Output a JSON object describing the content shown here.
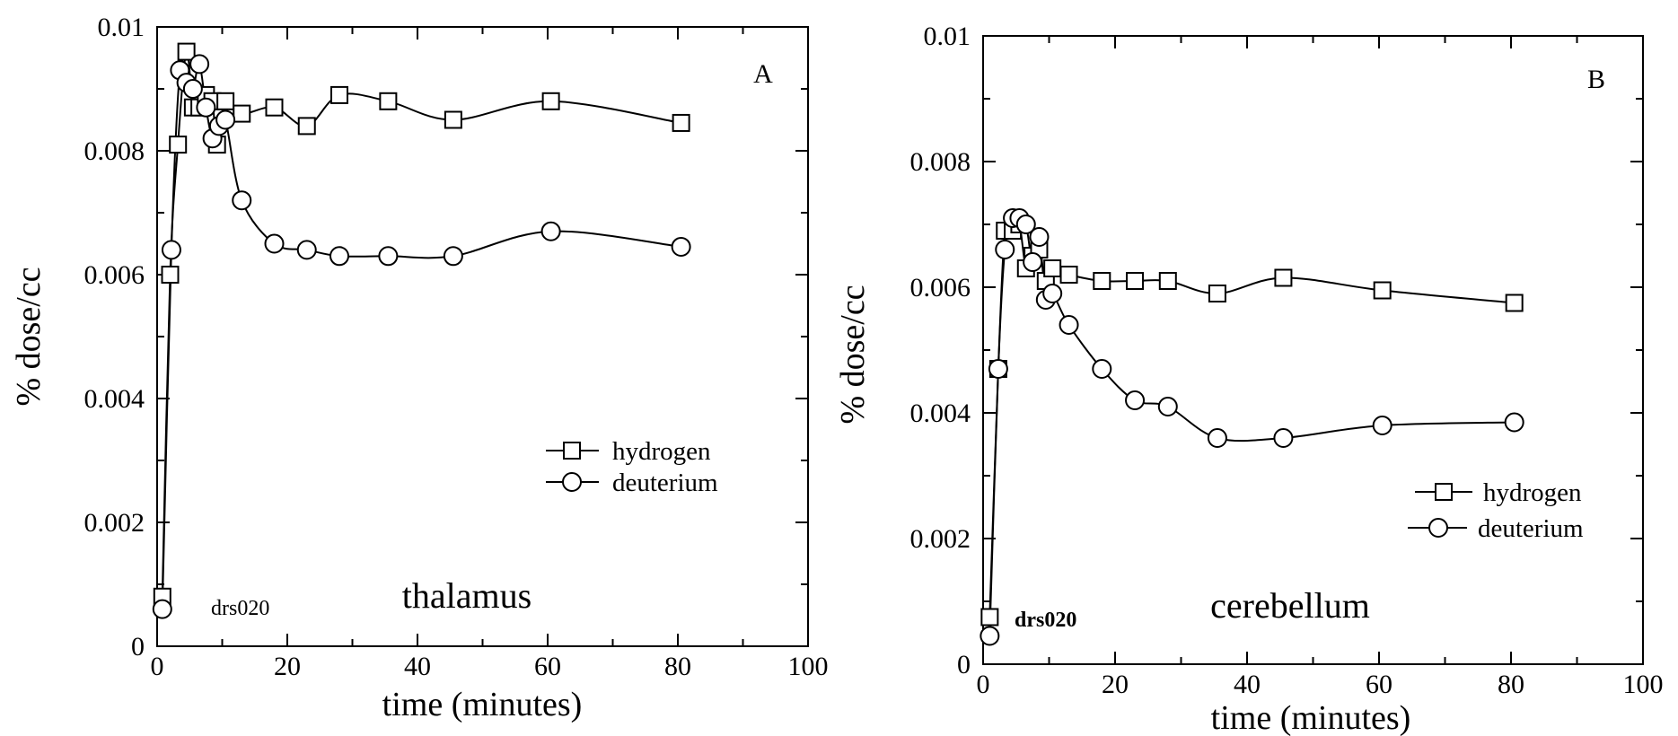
{
  "chart_data": [
    {
      "type": "line",
      "panel_letter": "A",
      "region_label": "thalamus",
      "run_label": "drs020",
      "xlabel": "time (minutes)",
      "ylabel": "% dose/cc",
      "xlim": [
        0,
        100
      ],
      "ylim": [
        0,
        0.01
      ],
      "xticks": [
        "0",
        "20",
        "40",
        "60",
        "80",
        "100"
      ],
      "yticks": [
        "0",
        "0.002",
        "0.004",
        "0.006",
        "0.008",
        "0.01"
      ],
      "legend_position": "center-right",
      "series": [
        {
          "name": "hydrogen",
          "marker": "square",
          "x": [
            0.8,
            2,
            3.2,
            4.5,
            5.5,
            6.5,
            7.5,
            8.5,
            9.2,
            10.5,
            13,
            18,
            23,
            28,
            35.5,
            45.5,
            60.5,
            80.5
          ],
          "y": [
            0.0008,
            0.006,
            0.0081,
            0.0096,
            0.0087,
            0.0087,
            0.0089,
            0.0088,
            0.0081,
            0.0088,
            0.0086,
            0.0087,
            0.0084,
            0.0089,
            0.0088,
            0.0085,
            0.0088,
            0.00845
          ]
        },
        {
          "name": "deuterium",
          "marker": "circle",
          "x": [
            0.8,
            2.2,
            3.5,
            4.5,
            5.5,
            6.5,
            7.5,
            8.5,
            9.5,
            10.5,
            13,
            18,
            23,
            28,
            35.5,
            45.5,
            60.5,
            80.5
          ],
          "y": [
            0.0006,
            0.0064,
            0.0093,
            0.0091,
            0.009,
            0.0094,
            0.0087,
            0.0082,
            0.0084,
            0.0085,
            0.0072,
            0.0065,
            0.0064,
            0.0063,
            0.0063,
            0.0063,
            0.0067,
            0.00645
          ]
        }
      ]
    },
    {
      "type": "line",
      "panel_letter": "B",
      "region_label": "cerebellum",
      "run_label": "drs020",
      "xlabel": "time (minutes)",
      "ylabel": "% dose/cc",
      "xlim": [
        0,
        100
      ],
      "ylim": [
        0,
        0.01
      ],
      "xticks": [
        "0",
        "20",
        "40",
        "60",
        "80",
        "100"
      ],
      "yticks": [
        "0",
        "0.002",
        "0.004",
        "0.006",
        "0.008",
        "0.01"
      ],
      "legend_position": "lower-right",
      "series": [
        {
          "name": "hydrogen",
          "marker": "square",
          "x": [
            1,
            2.3,
            3.3,
            4.5,
            5.5,
            6.5,
            7.5,
            8.5,
            9.5,
            10.5,
            13,
            18,
            23,
            28,
            35.5,
            45.5,
            60.5,
            80.5
          ],
          "y": [
            0.00075,
            0.0047,
            0.0069,
            0.0069,
            0.007,
            0.0063,
            0.0065,
            0.0066,
            0.0061,
            0.0063,
            0.0062,
            0.0061,
            0.0061,
            0.0061,
            0.0059,
            0.00615,
            0.00595,
            0.00575
          ]
        },
        {
          "name": "deuterium",
          "marker": "circle",
          "x": [
            1,
            2.3,
            3.3,
            4.5,
            5.5,
            6.5,
            7.5,
            8.5,
            9.5,
            10.5,
            13,
            18,
            23,
            28,
            35.5,
            45.5,
            60.5,
            80.5
          ],
          "y": [
            0.00045,
            0.0047,
            0.0066,
            0.0071,
            0.0071,
            0.007,
            0.0064,
            0.0068,
            0.0058,
            0.0059,
            0.0054,
            0.0047,
            0.0042,
            0.0041,
            0.0036,
            0.0036,
            0.0038,
            0.00385
          ]
        }
      ]
    }
  ]
}
